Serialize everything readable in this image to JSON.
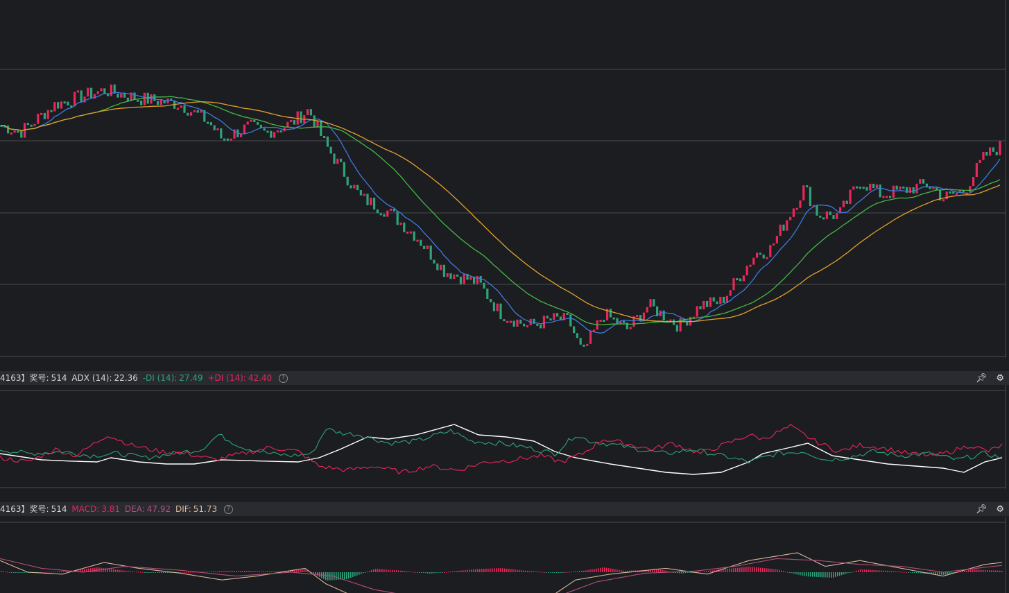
{
  "colors": {
    "up": "#e8275a",
    "down": "#2ea37a",
    "ma_blue": "#3d7be0",
    "ma_green": "#44b945",
    "ma_orange": "#e3a22b",
    "adx": "#ffffff",
    "minus_di": "#2ea37a",
    "plus_di": "#e8275a",
    "dif": "#d9b89a",
    "dea": "#b2507b",
    "grid": "#4a4b50",
    "background": "#1c1d21"
  },
  "adx_header": {
    "prefix": "4163】奖号:",
    "issue": "514",
    "adx_label": "ADX (14):",
    "adx_value": "22.36",
    "minus_di_label": "-DI (14):",
    "minus_di_value": "27.49",
    "plus_di_label": "+DI (14):",
    "plus_di_value": "42.40",
    "help_icon": "help-circle-icon",
    "pin_icon": "pin-icon",
    "settings_icon": "gear-icon"
  },
  "macd_header": {
    "prefix": "4163】奖号:",
    "issue": "514",
    "macd_label": "MACD:",
    "macd_value": "3.81",
    "dea_label": "DEA:",
    "dea_value": "47.92",
    "dif_label": "DIF:",
    "dif_value": "51.73",
    "help_icon": "help-circle-icon",
    "pin_icon": "pin-icon",
    "settings_icon": "gear-icon"
  },
  "chart_data": [
    {
      "type": "candlestick",
      "path": [
        [
          0,
          0.5
        ],
        [
          30,
          0.4
        ],
        [
          80,
          0.8
        ],
        [
          150,
          1.0
        ],
        [
          200,
          0.88
        ],
        [
          260,
          0.8
        ],
        [
          300,
          0.55
        ],
        [
          320,
          0.3
        ],
        [
          360,
          0.48
        ],
        [
          380,
          0.38
        ],
        [
          420,
          0.52
        ],
        [
          445,
          0.72
        ],
        [
          470,
          0.2
        ],
        [
          520,
          -0.55
        ],
        [
          560,
          -0.75
        ],
        [
          600,
          -1.1
        ],
        [
          640,
          -1.6
        ],
        [
          690,
          -1.78
        ],
        [
          720,
          -2.2
        ],
        [
          760,
          -2.4
        ],
        [
          800,
          -2.3
        ],
        [
          820,
          -2.32
        ],
        [
          840,
          -2.8
        ],
        [
          870,
          -2.22
        ],
        [
          905,
          -2.45
        ],
        [
          935,
          -2.1
        ],
        [
          980,
          -2.4
        ],
        [
          1010,
          -2.1
        ],
        [
          1040,
          -2.05
        ],
        [
          1090,
          -1.35
        ],
        [
          1110,
          -1.3
        ],
        [
          1160,
          -0.4
        ],
        [
          1180,
          -0.8
        ],
        [
          1210,
          -0.8
        ],
        [
          1240,
          -0.3
        ],
        [
          1270,
          -0.5
        ],
        [
          1300,
          -0.45
        ],
        [
          1340,
          -0.35
        ],
        [
          1360,
          -0.55
        ],
        [
          1390,
          -0.45
        ],
        [
          1420,
          0.05
        ],
        [
          1445,
          0.2
        ]
      ],
      "ma_periods": [
        10,
        30,
        50
      ],
      "grid_lines": 4
    },
    {
      "type": "line",
      "series": [
        {
          "name": "ADX (14)",
          "path": [
            [
              0,
              0.1
            ],
            [
              20,
              0.05
            ],
            [
              60,
              -0.05
            ],
            [
              100,
              -0.08
            ],
            [
              140,
              -0.1
            ],
            [
              160,
              0.0
            ],
            [
              200,
              -0.1
            ],
            [
              240,
              -0.15
            ],
            [
              280,
              -0.15
            ],
            [
              320,
              -0.05
            ],
            [
              380,
              -0.08
            ],
            [
              430,
              -0.1
            ],
            [
              460,
              0.0
            ],
            [
              490,
              0.2
            ],
            [
              530,
              0.5
            ],
            [
              560,
              0.45
            ],
            [
              600,
              0.55
            ],
            [
              655,
              0.8
            ],
            [
              690,
              0.55
            ],
            [
              730,
              0.5
            ],
            [
              770,
              0.4
            ],
            [
              800,
              0.15
            ],
            [
              830,
              0.0
            ],
            [
              880,
              -0.15
            ],
            [
              920,
              -0.25
            ],
            [
              960,
              -0.35
            ],
            [
              1000,
              -0.4
            ],
            [
              1040,
              -0.35
            ],
            [
              1080,
              -0.1
            ],
            [
              1100,
              0.1
            ],
            [
              1140,
              0.25
            ],
            [
              1165,
              0.35
            ],
            [
              1200,
              0.05
            ],
            [
              1240,
              -0.05
            ],
            [
              1280,
              -0.15
            ],
            [
              1320,
              -0.2
            ],
            [
              1360,
              -0.25
            ],
            [
              1390,
              -0.35
            ],
            [
              1420,
              -0.1
            ],
            [
              1445,
              0.0
            ]
          ]
        },
        {
          "name": "-DI (14)",
          "path": [
            [
              0,
              0.2
            ],
            [
              40,
              0.1
            ],
            [
              90,
              0.15
            ],
            [
              130,
              0.05
            ],
            [
              170,
              0.1
            ],
            [
              210,
              0.0
            ],
            [
              250,
              0.1
            ],
            [
              290,
              0.2
            ],
            [
              315,
              0.55
            ],
            [
              350,
              0.25
            ],
            [
              390,
              0.1
            ],
            [
              420,
              0.05
            ],
            [
              450,
              0.1
            ],
            [
              470,
              0.7
            ],
            [
              490,
              0.6
            ],
            [
              520,
              0.55
            ],
            [
              560,
              0.35
            ],
            [
              600,
              0.4
            ],
            [
              650,
              0.65
            ],
            [
              680,
              0.4
            ],
            [
              720,
              0.35
            ],
            [
              760,
              0.25
            ],
            [
              800,
              0.1
            ],
            [
              830,
              0.55
            ],
            [
              850,
              0.4
            ],
            [
              890,
              0.3
            ],
            [
              920,
              0.2
            ],
            [
              960,
              0.1
            ],
            [
              1000,
              0.2
            ],
            [
              1040,
              0.05
            ],
            [
              1080,
              -0.1
            ],
            [
              1120,
              0.1
            ],
            [
              1160,
              0.15
            ],
            [
              1190,
              -0.05
            ],
            [
              1220,
              0.0
            ],
            [
              1260,
              0.15
            ],
            [
              1300,
              0.05
            ],
            [
              1340,
              0.1
            ],
            [
              1380,
              -0.05
            ],
            [
              1420,
              0.1
            ],
            [
              1445,
              0.0
            ]
          ]
        },
        {
          "name": "+DI (14)",
          "path": [
            [
              0,
              0.0
            ],
            [
              40,
              -0.1
            ],
            [
              80,
              0.2
            ],
            [
              110,
              0.05
            ],
            [
              155,
              0.55
            ],
            [
              190,
              0.3
            ],
            [
              230,
              0.15
            ],
            [
              270,
              0.1
            ],
            [
              310,
              -0.05
            ],
            [
              350,
              0.1
            ],
            [
              390,
              0.25
            ],
            [
              430,
              0.15
            ],
            [
              460,
              -0.2
            ],
            [
              500,
              -0.3
            ],
            [
              540,
              -0.2
            ],
            [
              580,
              -0.35
            ],
            [
              620,
              -0.2
            ],
            [
              660,
              -0.3
            ],
            [
              700,
              -0.1
            ],
            [
              740,
              -0.05
            ],
            [
              780,
              0.05
            ],
            [
              810,
              -0.1
            ],
            [
              840,
              0.1
            ],
            [
              870,
              0.45
            ],
            [
              900,
              0.35
            ],
            [
              940,
              0.2
            ],
            [
              970,
              0.35
            ],
            [
              1010,
              0.1
            ],
            [
              1050,
              0.35
            ],
            [
              1080,
              0.55
            ],
            [
              1100,
              0.45
            ],
            [
              1140,
              0.75
            ],
            [
              1175,
              0.4
            ],
            [
              1210,
              0.15
            ],
            [
              1240,
              0.3
            ],
            [
              1270,
              0.25
            ],
            [
              1310,
              0.1
            ],
            [
              1350,
              0.05
            ],
            [
              1400,
              0.3
            ],
            [
              1425,
              0.15
            ],
            [
              1445,
              0.3
            ]
          ]
        }
      ]
    },
    {
      "type": "bar",
      "series": [
        {
          "name": "MACD",
          "path": [
            [
              0,
              0.1
            ],
            [
              20,
              -0.05
            ],
            [
              60,
              0.0
            ],
            [
              100,
              0.1
            ],
            [
              140,
              0.35
            ],
            [
              180,
              0.1
            ],
            [
              220,
              -0.05
            ],
            [
              260,
              0.0
            ],
            [
              300,
              0.05
            ],
            [
              340,
              0.1
            ],
            [
              400,
              0.05
            ],
            [
              440,
              0.2
            ],
            [
              470,
              -0.6
            ],
            [
              500,
              -0.5
            ],
            [
              540,
              0.25
            ],
            [
              580,
              0.1
            ],
            [
              620,
              -0.1
            ],
            [
              680,
              0.2
            ],
            [
              720,
              0.3
            ],
            [
              760,
              0.1
            ],
            [
              800,
              -0.05
            ],
            [
              840,
              0.1
            ],
            [
              870,
              0.35
            ],
            [
              900,
              0.1
            ],
            [
              950,
              0.2
            ],
            [
              980,
              -0.1
            ],
            [
              1020,
              0.1
            ],
            [
              1080,
              0.4
            ],
            [
              1120,
              0.2
            ],
            [
              1160,
              -0.3
            ],
            [
              1200,
              -0.4
            ],
            [
              1240,
              0.2
            ],
            [
              1280,
              0.1
            ],
            [
              1320,
              -0.05
            ],
            [
              1360,
              -0.2
            ],
            [
              1400,
              0.2
            ],
            [
              1445,
              0.1
            ]
          ]
        },
        {
          "name": "DIF",
          "path": [
            [
              0,
              0.6
            ],
            [
              40,
              0.0
            ],
            [
              90,
              -0.1
            ],
            [
              150,
              0.5
            ],
            [
              200,
              0.2
            ],
            [
              260,
              -0.05
            ],
            [
              320,
              -0.4
            ],
            [
              370,
              -0.2
            ],
            [
              440,
              0.2
            ],
            [
              470,
              -0.6
            ],
            [
              520,
              -1.4
            ],
            [
              600,
              -1.8
            ],
            [
              700,
              -1.6
            ],
            [
              780,
              -1.6
            ],
            [
              830,
              -0.4
            ],
            [
              880,
              -0.1
            ],
            [
              960,
              0.2
            ],
            [
              1020,
              -0.1
            ],
            [
              1080,
              0.6
            ],
            [
              1150,
              1.0
            ],
            [
              1190,
              0.3
            ],
            [
              1240,
              0.6
            ],
            [
              1300,
              0.2
            ],
            [
              1360,
              -0.2
            ],
            [
              1420,
              0.4
            ],
            [
              1445,
              0.5
            ]
          ]
        },
        {
          "name": "DEA",
          "path": [
            [
              0,
              0.7
            ],
            [
              60,
              0.2
            ],
            [
              120,
              0.0
            ],
            [
              180,
              0.3
            ],
            [
              260,
              0.1
            ],
            [
              340,
              -0.2
            ],
            [
              420,
              0.0
            ],
            [
              480,
              -0.2
            ],
            [
              540,
              -0.9
            ],
            [
              620,
              -1.4
            ],
            [
              720,
              -1.55
            ],
            [
              800,
              -1.3
            ],
            [
              860,
              -0.5
            ],
            [
              930,
              -0.05
            ],
            [
              1000,
              0.05
            ],
            [
              1060,
              0.3
            ],
            [
              1120,
              0.7
            ],
            [
              1180,
              0.6
            ],
            [
              1240,
              0.4
            ],
            [
              1300,
              0.3
            ],
            [
              1360,
              0.0
            ],
            [
              1420,
              0.25
            ],
            [
              1445,
              0.35
            ]
          ]
        }
      ]
    }
  ]
}
